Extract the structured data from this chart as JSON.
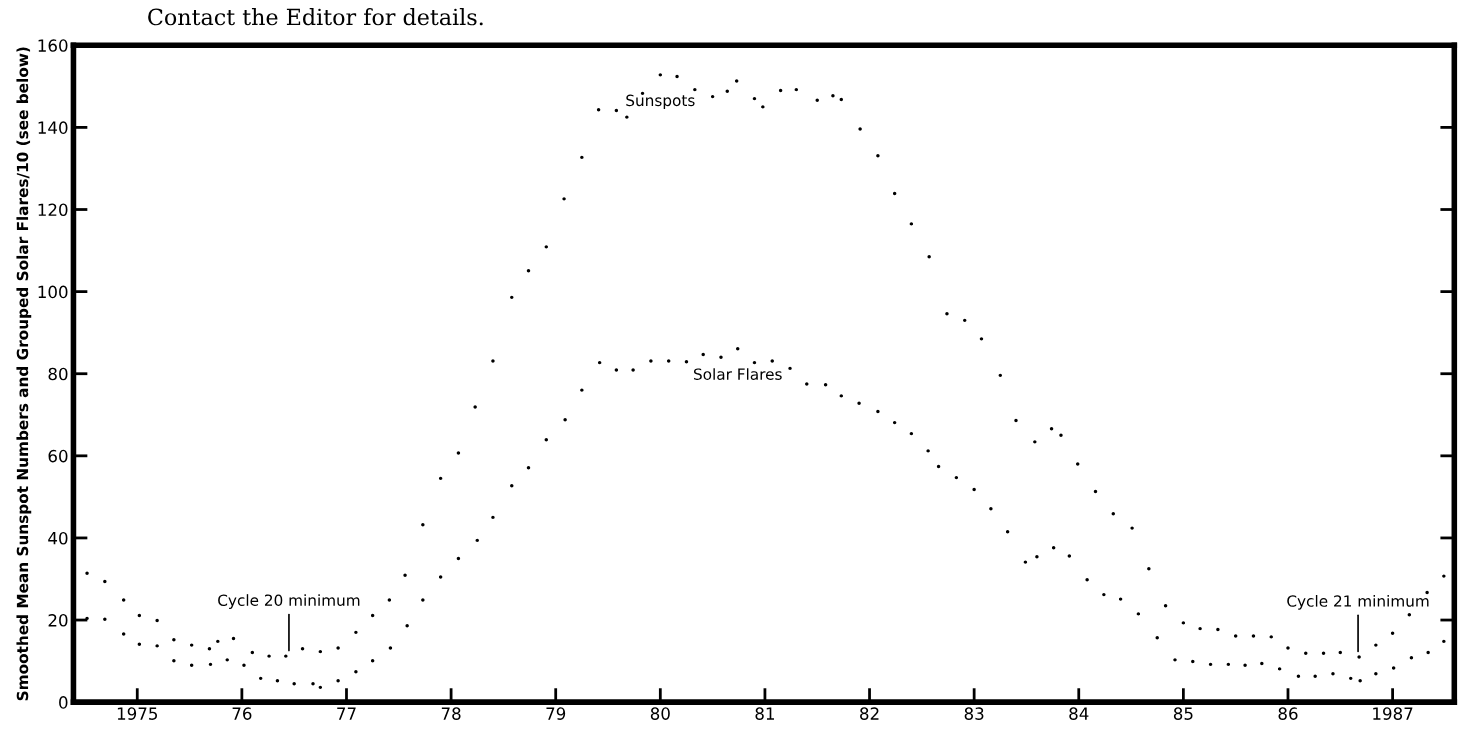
{
  "chart_data": {
    "type": "scatter",
    "ylabel": "Smoothed Mean Sunspot Numbers and Grouped Solar Flares/10 (see below)",
    "xlim": [
      1974.39,
      1987.59
    ],
    "ylim": [
      0,
      160
    ],
    "xticks": [
      {
        "value": 1975,
        "label": "1975"
      },
      {
        "value": 1976,
        "label": "76"
      },
      {
        "value": 1977,
        "label": "77"
      },
      {
        "value": 1978,
        "label": "78"
      },
      {
        "value": 1979,
        "label": "79"
      },
      {
        "value": 1980,
        "label": "80"
      },
      {
        "value": 1981,
        "label": "81"
      },
      {
        "value": 1982,
        "label": "82"
      },
      {
        "value": 1983,
        "label": "83"
      },
      {
        "value": 1984,
        "label": "84"
      },
      {
        "value": 1985,
        "label": "85"
      },
      {
        "value": 1986,
        "label": "86"
      },
      {
        "value": 1987,
        "label": "1987"
      }
    ],
    "yticks": [
      0,
      20,
      40,
      60,
      80,
      100,
      120,
      140,
      160
    ],
    "marker": "circle",
    "grid": false,
    "legend": false,
    "series": [
      {
        "name": "Sunspots",
        "color": "#000000",
        "x": [
          1974.52,
          1974.69,
          1974.87,
          1975.02,
          1975.19,
          1975.35,
          1975.52,
          1975.69,
          1975.77,
          1975.92,
          1976.1,
          1976.26,
          1976.42,
          1976.58,
          1976.75,
          1976.92,
          1977.09,
          1977.25,
          1977.41,
          1977.56,
          1977.73,
          1977.9,
          1978.07,
          1978.23,
          1978.4,
          1978.58,
          1978.74,
          1978.91,
          1979.08,
          1979.25,
          1979.41,
          1979.58,
          1979.68,
          1979.83,
          1980.0,
          1980.16,
          1980.33,
          1980.5,
          1980.64,
          1980.73,
          1980.9,
          1980.98,
          1981.15,
          1981.3,
          1981.5,
          1981.65,
          1981.73,
          1981.91,
          1982.08,
          1982.24,
          1982.4,
          1982.57,
          1982.74,
          1982.91,
          1983.07,
          1983.25,
          1983.4,
          1983.58,
          1983.74,
          1983.83,
          1983.99,
          1984.16,
          1984.33,
          1984.51,
          1984.67,
          1984.83,
          1985.0,
          1985.16,
          1985.33,
          1985.5,
          1985.67,
          1985.84,
          1986.0,
          1986.17,
          1986.34,
          1986.5,
          1986.68,
          1986.84,
          1987.0,
          1987.16,
          1987.33,
          1987.49
        ],
        "values": [
          31.4,
          29.4,
          24.9,
          21.1,
          19.9,
          15.2,
          13.9,
          13.0,
          14.8,
          15.5,
          12.1,
          11.2,
          11.2,
          13.0,
          12.3,
          13.2,
          17.0,
          21.1,
          24.9,
          30.9,
          43.2,
          54.5,
          60.7,
          71.9,
          83.1,
          98.6,
          105.1,
          110.9,
          122.6,
          132.7,
          144.3,
          144.1,
          142.5,
          148.3,
          152.8,
          152.4,
          149.2,
          147.5,
          148.8,
          151.3,
          147.0,
          145.0,
          149.0,
          149.2,
          146.6,
          147.7,
          146.8,
          139.6,
          133.1,
          123.9,
          116.5,
          108.5,
          94.6,
          93.0,
          88.5,
          79.6,
          68.6,
          63.4,
          66.6,
          65.0,
          58.0,
          51.3,
          45.9,
          42.4,
          32.5,
          23.5,
          19.3,
          17.9,
          17.7,
          16.1,
          16.1,
          15.9,
          13.2,
          11.9,
          11.9,
          12.1,
          11.0,
          13.9,
          16.8,
          21.3,
          26.7,
          30.7
        ]
      },
      {
        "name": "Solar Flares",
        "color": "#000000",
        "x": [
          1974.52,
          1974.69,
          1974.87,
          1975.02,
          1975.19,
          1975.35,
          1975.52,
          1975.7,
          1975.86,
          1976.02,
          1976.18,
          1976.34,
          1976.5,
          1976.68,
          1976.75,
          1976.92,
          1977.09,
          1977.25,
          1977.42,
          1977.58,
          1977.73,
          1977.9,
          1978.07,
          1978.25,
          1978.4,
          1978.58,
          1978.74,
          1978.91,
          1979.09,
          1979.25,
          1979.42,
          1979.58,
          1979.74,
          1979.91,
          1980.08,
          1980.25,
          1980.41,
          1980.58,
          1980.74,
          1980.9,
          1981.07,
          1981.24,
          1981.4,
          1981.58,
          1981.73,
          1981.9,
          1982.08,
          1982.24,
          1982.4,
          1982.56,
          1982.66,
          1982.83,
          1983.0,
          1983.16,
          1983.32,
          1983.49,
          1983.6,
          1983.76,
          1983.91,
          1984.08,
          1984.24,
          1984.4,
          1984.57,
          1984.75,
          1984.92,
          1985.09,
          1985.26,
          1985.43,
          1985.59,
          1985.75,
          1985.92,
          1986.1,
          1986.26,
          1986.43,
          1986.6,
          1986.69,
          1986.84,
          1987.01,
          1987.18,
          1987.34,
          1987.49
        ],
        "values": [
          20.4,
          20.2,
          16.6,
          14.1,
          13.7,
          10.1,
          9.0,
          9.2,
          10.3,
          9.0,
          5.8,
          5.2,
          4.5,
          4.5,
          3.6,
          5.2,
          7.4,
          10.1,
          13.2,
          18.6,
          24.9,
          30.5,
          35.0,
          39.4,
          45.0,
          52.7,
          57.1,
          63.9,
          68.8,
          76.0,
          82.7,
          80.9,
          80.9,
          83.1,
          83.1,
          82.9,
          84.7,
          84.0,
          86.1,
          82.7,
          83.1,
          81.3,
          77.5,
          77.3,
          74.6,
          72.8,
          70.8,
          68.1,
          65.4,
          61.2,
          57.4,
          54.7,
          51.8,
          47.1,
          41.5,
          34.1,
          35.4,
          37.6,
          35.6,
          29.8,
          26.2,
          25.1,
          21.5,
          15.7,
          10.3,
          9.9,
          9.2,
          9.2,
          9.0,
          9.4,
          8.1,
          6.3,
          6.3,
          6.9,
          5.8,
          5.2,
          6.9,
          8.3,
          10.8,
          12.1,
          14.8
        ]
      }
    ],
    "annotations": [
      {
        "text": "Cycle 20 minimum",
        "x": 1976.45,
        "y": 11.2
      },
      {
        "text": "Cycle 21 minimum",
        "x": 1986.67,
        "y": 11.0
      },
      "Contact the Editor for details."
    ]
  }
}
